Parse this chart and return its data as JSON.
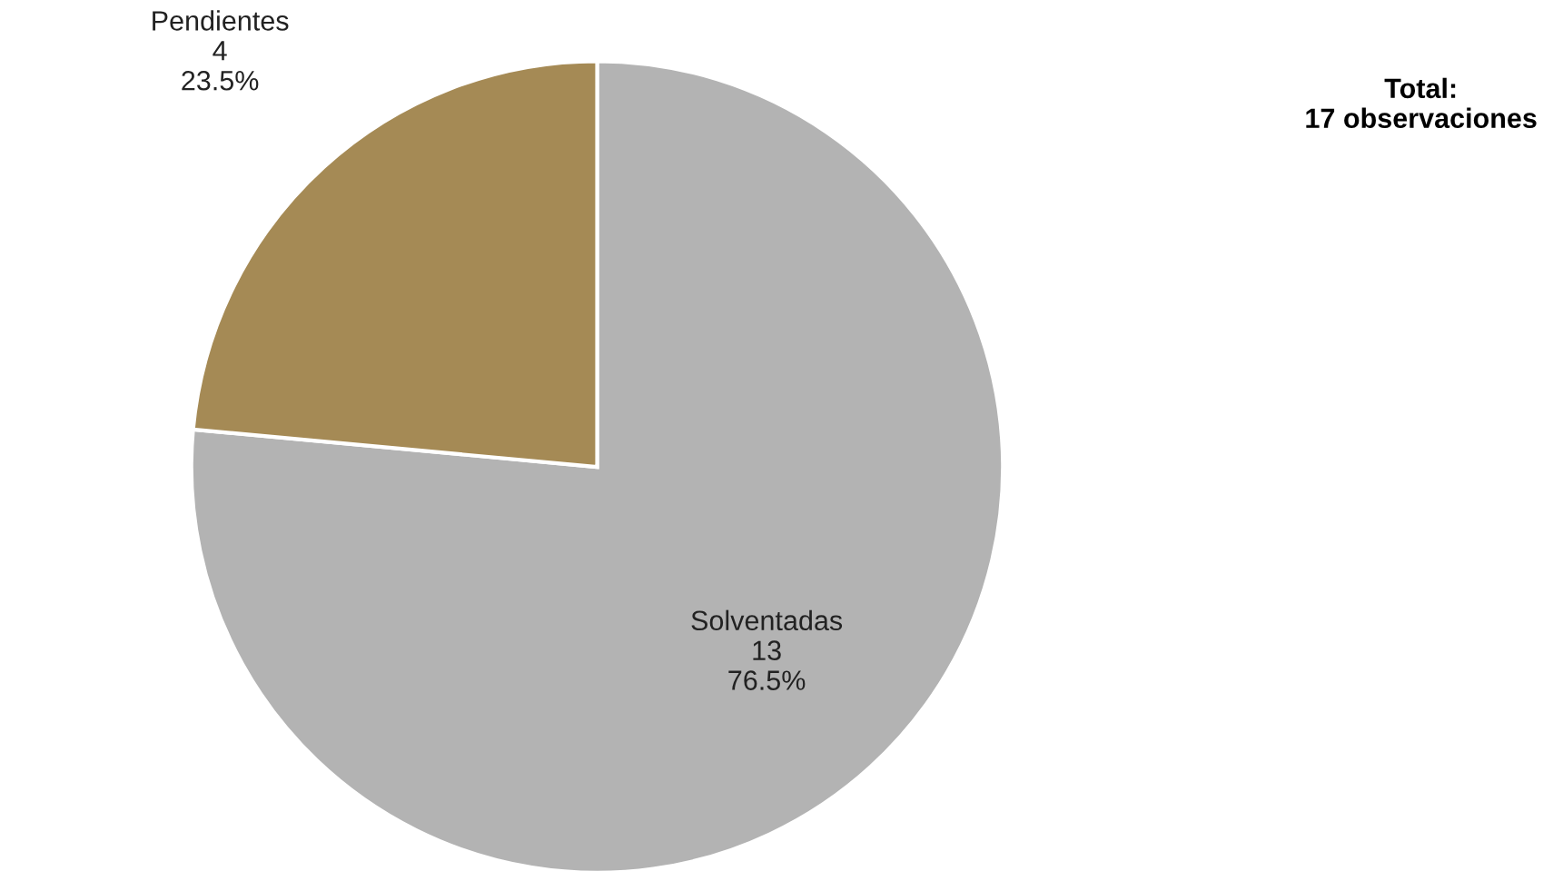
{
  "chart_data": {
    "type": "pie",
    "categories": [
      "Solventadas",
      "Pendientes"
    ],
    "values": [
      13,
      4
    ],
    "colors": [
      "#b3b3b3",
      "#a58a55"
    ],
    "value_labels": [
      "13\n76.5%",
      "4\n23.5%"
    ],
    "annotations": [
      "Total:\n17 observaciones"
    ]
  }
}
